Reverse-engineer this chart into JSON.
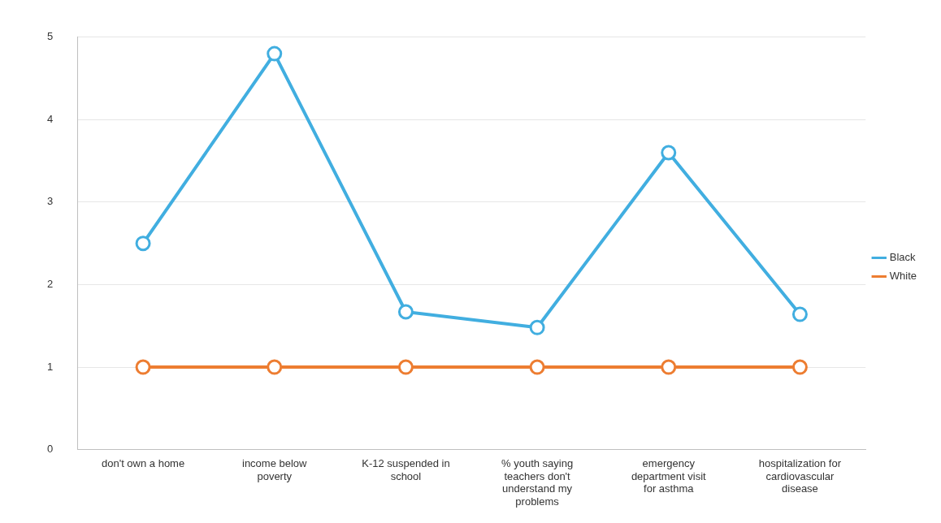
{
  "chart_data": {
    "type": "line",
    "categories": [
      "don't own a home",
      "income below poverty",
      "K-12 suspended in school",
      "% youth saying teachers don't understand my problems",
      "emergency department visit for asthma",
      "hospitalization for cardiovascular disease"
    ],
    "series": [
      {
        "name": "Black",
        "color": "#41aee0",
        "values": [
          2.5,
          4.8,
          1.67,
          1.48,
          3.6,
          1.64
        ]
      },
      {
        "name": "White",
        "color": "#ed7d31",
        "values": [
          1,
          1,
          1,
          1,
          1,
          1
        ]
      }
    ],
    "ylim": [
      0,
      5
    ],
    "yticks": [
      0,
      1,
      2,
      3,
      4,
      5
    ],
    "grid": "y",
    "legend": "right",
    "marker": "circle",
    "line_style": "solid"
  }
}
